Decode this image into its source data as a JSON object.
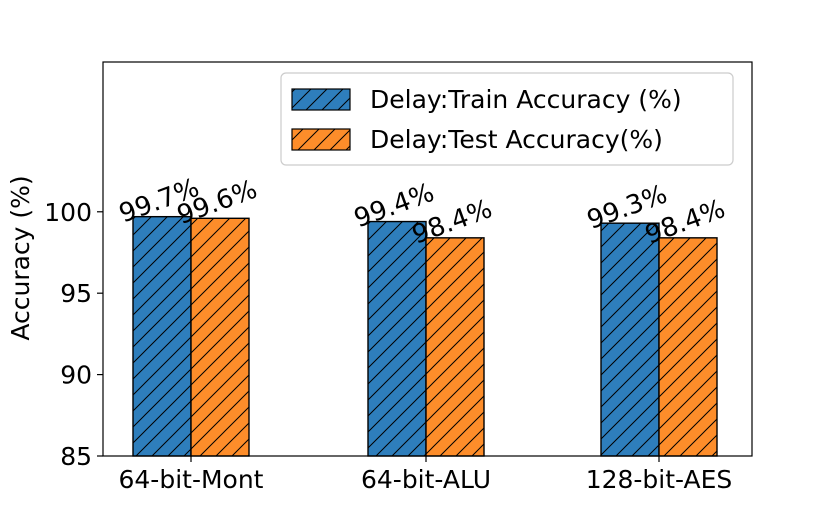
{
  "chart_data": {
    "type": "bar",
    "categories": [
      "64-bit-Mont",
      "64-bit-ALU",
      "128-bit-AES"
    ],
    "series": [
      {
        "name": "Delay:Train Accuracy (%)",
        "values": [
          99.7,
          99.4,
          99.3
        ],
        "labels": [
          "99.7%",
          "99.4%",
          "99.3%"
        ],
        "color": "#2e7ebc",
        "hatch": "diagonal"
      },
      {
        "name": "Delay:Test Accuracy(%)",
        "values": [
          99.6,
          98.4,
          98.4
        ],
        "labels": [
          "99.6%",
          "98.4%",
          "98.4%"
        ],
        "color": "#fd8d2a",
        "hatch": "diagonal"
      }
    ],
    "ylabel": "Accuracy (%)",
    "xlabel": "",
    "ylim": [
      85,
      109.2
    ],
    "yticks": [
      85,
      90,
      95,
      100
    ],
    "ytick_labels": [
      "85",
      "90",
      "95",
      "100"
    ],
    "grid": false,
    "legend_position": "top-right"
  }
}
